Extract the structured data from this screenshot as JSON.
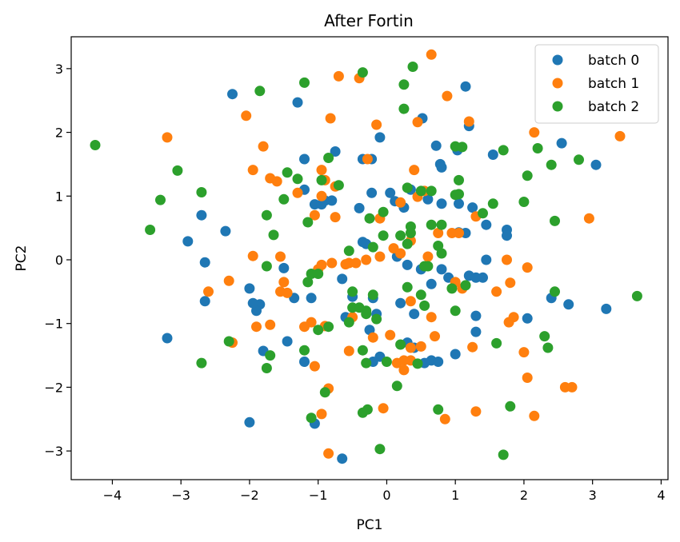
{
  "chart_data": {
    "type": "scatter",
    "title": "After Fortin",
    "xlabel": "PC1",
    "ylabel": "PC2",
    "xlim": [
      -4.6,
      4.1
    ],
    "ylim": [
      -3.45,
      3.5
    ],
    "xticks": [
      -4,
      -3,
      -2,
      -1,
      0,
      1,
      2,
      3,
      4
    ],
    "yticks": [
      -3,
      -2,
      -1,
      0,
      1,
      2,
      3
    ],
    "grid": false,
    "legend_position": "top-right",
    "series": [
      {
        "name": "batch 0",
        "color": "#1f77b4",
        "points": [
          [
            -2.25,
            2.6
          ],
          [
            -1.3,
            2.47
          ],
          [
            1.15,
            2.72
          ],
          [
            0.52,
            2.22
          ],
          [
            1.2,
            2.1
          ],
          [
            -1.2,
            1.58
          ],
          [
            -0.75,
            1.7
          ],
          [
            -0.35,
            1.58
          ],
          [
            -0.22,
            1.58
          ],
          [
            -0.1,
            1.92
          ],
          [
            0.72,
            1.79
          ],
          [
            1.03,
            1.72
          ],
          [
            1.55,
            1.65
          ],
          [
            2.55,
            1.83
          ],
          [
            3.05,
            1.49
          ],
          [
            0.78,
            1.5
          ],
          [
            0.8,
            1.45
          ],
          [
            -1.2,
            1.1
          ],
          [
            -1.05,
            0.87
          ],
          [
            -0.95,
            0.87
          ],
          [
            -0.9,
            0.93
          ],
          [
            -0.8,
            0.93
          ],
          [
            -0.4,
            0.81
          ],
          [
            -0.22,
            1.05
          ],
          [
            0.05,
            1.05
          ],
          [
            0.35,
            1.1
          ],
          [
            0.12,
            0.92
          ],
          [
            0.25,
            0.82
          ],
          [
            0.6,
            0.95
          ],
          [
            0.8,
            0.88
          ],
          [
            1.05,
            0.88
          ],
          [
            1.25,
            0.82
          ],
          [
            -2.7,
            0.7
          ],
          [
            -2.35,
            0.45
          ],
          [
            -2.9,
            0.29
          ],
          [
            -2.65,
            -0.04
          ],
          [
            -0.35,
            0.28
          ],
          [
            -0.3,
            0.25
          ],
          [
            0.15,
            0.05
          ],
          [
            0.3,
            -0.08
          ],
          [
            0.5,
            -0.15
          ],
          [
            0.8,
            -0.15
          ],
          [
            1.05,
            0.43
          ],
          [
            1.15,
            0.42
          ],
          [
            1.45,
            0.55
          ],
          [
            1.75,
            0.47
          ],
          [
            1.75,
            0.38
          ],
          [
            1.45,
            0.0
          ],
          [
            -2.0,
            -0.45
          ],
          [
            -1.85,
            -0.7
          ],
          [
            -1.9,
            -0.8
          ],
          [
            -1.5,
            -0.13
          ],
          [
            -1.35,
            -0.6
          ],
          [
            -1.1,
            -0.6
          ],
          [
            -0.65,
            -0.3
          ],
          [
            -0.5,
            -0.58
          ],
          [
            -0.6,
            -0.9
          ],
          [
            -0.2,
            -0.6
          ],
          [
            -0.15,
            -0.85
          ],
          [
            -0.25,
            -1.1
          ],
          [
            0.2,
            -0.68
          ],
          [
            0.4,
            -0.85
          ],
          [
            0.65,
            -0.38
          ],
          [
            0.9,
            -0.28
          ],
          [
            1.2,
            -0.25
          ],
          [
            1.3,
            -0.28
          ],
          [
            1.4,
            -0.28
          ],
          [
            1.3,
            -0.88
          ],
          [
            1.3,
            -1.13
          ],
          [
            2.05,
            -0.92
          ],
          [
            2.4,
            -0.6
          ],
          [
            2.65,
            -0.7
          ],
          [
            3.2,
            -0.77
          ],
          [
            -1.95,
            -0.68
          ],
          [
            -1.8,
            -1.43
          ],
          [
            -1.45,
            -1.28
          ],
          [
            -1.2,
            -1.6
          ],
          [
            -1.05,
            -2.57
          ],
          [
            -0.65,
            -3.12
          ],
          [
            -0.1,
            -1.52
          ],
          [
            0.3,
            -1.3
          ],
          [
            0.4,
            -1.38
          ],
          [
            0.55,
            -1.62
          ],
          [
            0.65,
            -1.58
          ],
          [
            0.75,
            -1.6
          ],
          [
            1.0,
            -1.48
          ],
          [
            -2.0,
            -2.55
          ],
          [
            -3.2,
            -1.23
          ],
          [
            -2.65,
            -0.65
          ],
          [
            -0.2,
            -1.6
          ]
        ]
      },
      {
        "name": "batch 1",
        "color": "#ff7f0e",
        "points": [
          [
            0.65,
            3.22
          ],
          [
            -0.7,
            2.88
          ],
          [
            -0.4,
            2.85
          ],
          [
            0.88,
            2.57
          ],
          [
            -2.05,
            2.26
          ],
          [
            -0.82,
            2.22
          ],
          [
            -0.15,
            2.12
          ],
          [
            0.45,
            2.16
          ],
          [
            1.2,
            2.17
          ],
          [
            2.15,
            2.0
          ],
          [
            3.4,
            1.94
          ],
          [
            -3.2,
            1.92
          ],
          [
            -1.8,
            1.78
          ],
          [
            -0.28,
            1.58
          ],
          [
            0.4,
            1.41
          ],
          [
            -1.95,
            1.41
          ],
          [
            -1.7,
            1.28
          ],
          [
            -1.6,
            1.23
          ],
          [
            -1.3,
            1.05
          ],
          [
            -0.95,
            1.41
          ],
          [
            -0.9,
            1.25
          ],
          [
            -0.75,
            1.15
          ],
          [
            -0.95,
            1.0
          ],
          [
            0.45,
            0.99
          ],
          [
            0.55,
            1.08
          ],
          [
            -1.05,
            0.7
          ],
          [
            -0.75,
            0.67
          ],
          [
            -0.1,
            0.65
          ],
          [
            0.2,
            0.9
          ],
          [
            1.3,
            0.68
          ],
          [
            2.95,
            0.65
          ],
          [
            0.75,
            0.42
          ],
          [
            0.95,
            0.42
          ],
          [
            1.05,
            0.42
          ],
          [
            -1.95,
            0.06
          ],
          [
            -1.55,
            0.05
          ],
          [
            -1.0,
            -0.15
          ],
          [
            -0.95,
            -0.08
          ],
          [
            -0.8,
            -0.05
          ],
          [
            -0.6,
            -0.07
          ],
          [
            -0.55,
            -0.05
          ],
          [
            -0.45,
            -0.05
          ],
          [
            -0.3,
            0.0
          ],
          [
            -0.1,
            0.05
          ],
          [
            0.1,
            0.18
          ],
          [
            0.2,
            0.1
          ],
          [
            0.35,
            0.3
          ],
          [
            0.6,
            0.05
          ],
          [
            1.75,
            0.0
          ],
          [
            2.05,
            -0.12
          ],
          [
            -2.6,
            -0.5
          ],
          [
            -2.3,
            -0.33
          ],
          [
            -1.55,
            -0.5
          ],
          [
            -1.5,
            -0.35
          ],
          [
            -1.45,
            -0.52
          ],
          [
            0.35,
            -0.65
          ],
          [
            0.65,
            -0.9
          ],
          [
            1.0,
            -0.35
          ],
          [
            1.1,
            -0.45
          ],
          [
            1.6,
            -0.5
          ],
          [
            1.8,
            -0.36
          ],
          [
            1.85,
            -0.9
          ],
          [
            1.78,
            -0.98
          ],
          [
            -1.9,
            -1.05
          ],
          [
            -1.7,
            -1.02
          ],
          [
            -1.2,
            -1.05
          ],
          [
            -0.9,
            -1.04
          ],
          [
            -0.55,
            -1.43
          ],
          [
            -0.5,
            -0.9
          ],
          [
            -0.2,
            -1.22
          ],
          [
            0.05,
            -1.18
          ],
          [
            0.15,
            -1.62
          ],
          [
            0.25,
            -1.58
          ],
          [
            0.25,
            -1.73
          ],
          [
            0.35,
            -1.38
          ],
          [
            0.5,
            -1.36
          ],
          [
            0.7,
            -1.2
          ],
          [
            1.25,
            -1.37
          ],
          [
            2.0,
            -1.45
          ],
          [
            2.05,
            -1.85
          ],
          [
            -2.25,
            -1.3
          ],
          [
            -1.05,
            -1.67
          ],
          [
            -0.85,
            -2.02
          ],
          [
            -0.05,
            -2.33
          ],
          [
            0.35,
            -1.58
          ],
          [
            0.85,
            -2.5
          ],
          [
            1.3,
            -2.38
          ],
          [
            2.15,
            -2.45
          ],
          [
            2.6,
            -2.0
          ],
          [
            2.7,
            -2.0
          ],
          [
            -0.85,
            -3.04
          ],
          [
            -1.1,
            -0.98
          ],
          [
            -0.95,
            -2.42
          ]
        ]
      },
      {
        "name": "batch 2",
        "color": "#2ca02c",
        "points": [
          [
            0.38,
            3.03
          ],
          [
            -0.35,
            2.94
          ],
          [
            -1.2,
            2.78
          ],
          [
            -1.85,
            2.65
          ],
          [
            0.25,
            2.75
          ],
          [
            0.25,
            2.37
          ],
          [
            1.0,
            1.78
          ],
          [
            1.1,
            1.77
          ],
          [
            1.7,
            1.72
          ],
          [
            2.2,
            1.75
          ],
          [
            2.8,
            1.57
          ],
          [
            2.4,
            1.49
          ],
          [
            -4.25,
            1.8
          ],
          [
            -3.05,
            1.4
          ],
          [
            -1.45,
            1.37
          ],
          [
            -1.3,
            1.27
          ],
          [
            -0.95,
            1.25
          ],
          [
            -0.85,
            1.6
          ],
          [
            -0.7,
            1.17
          ],
          [
            2.05,
            1.32
          ],
          [
            1.05,
            1.25
          ],
          [
            1.05,
            1.03
          ],
          [
            1.0,
            1.02
          ],
          [
            0.3,
            1.13
          ],
          [
            0.5,
            1.08
          ],
          [
            0.65,
            1.08
          ],
          [
            -3.3,
            0.94
          ],
          [
            -2.7,
            1.06
          ],
          [
            -1.75,
            0.7
          ],
          [
            -1.5,
            0.95
          ],
          [
            -1.15,
            0.59
          ],
          [
            -0.25,
            0.65
          ],
          [
            -0.05,
            0.75
          ],
          [
            0.35,
            0.52
          ],
          [
            0.35,
            0.42
          ],
          [
            0.2,
            0.38
          ],
          [
            0.65,
            0.55
          ],
          [
            0.8,
            0.55
          ],
          [
            1.4,
            0.73
          ],
          [
            1.55,
            0.88
          ],
          [
            2.0,
            0.91
          ],
          [
            2.45,
            0.61
          ],
          [
            -3.45,
            0.47
          ],
          [
            -1.65,
            0.39
          ],
          [
            -0.55,
            0.14
          ],
          [
            -0.2,
            0.2
          ],
          [
            -0.05,
            0.38
          ],
          [
            0.3,
            0.25
          ],
          [
            0.75,
            0.22
          ],
          [
            0.55,
            -0.1
          ],
          [
            0.6,
            -0.1
          ],
          [
            0.8,
            0.1
          ],
          [
            -1.75,
            -0.1
          ],
          [
            -1.1,
            -0.22
          ],
          [
            -1.0,
            -0.22
          ],
          [
            -1.15,
            -0.35
          ],
          [
            -0.5,
            -0.75
          ],
          [
            -0.4,
            -0.75
          ],
          [
            -0.3,
            -0.8
          ],
          [
            -0.2,
            -0.55
          ],
          [
            -0.3,
            -0.85
          ],
          [
            0.3,
            -0.43
          ],
          [
            0.5,
            -0.55
          ],
          [
            0.55,
            -0.72
          ],
          [
            0.95,
            -0.45
          ],
          [
            1.15,
            -0.4
          ],
          [
            1.0,
            -0.8
          ],
          [
            2.45,
            -0.5
          ],
          [
            3.65,
            -0.57
          ],
          [
            -1.0,
            -1.1
          ],
          [
            -0.85,
            -1.05
          ],
          [
            -0.55,
            -0.98
          ],
          [
            -0.5,
            -0.5
          ],
          [
            -0.15,
            -0.93
          ],
          [
            -0.35,
            -1.42
          ],
          [
            -0.3,
            -1.62
          ],
          [
            0.0,
            -1.6
          ],
          [
            0.2,
            -1.33
          ],
          [
            0.45,
            -1.63
          ],
          [
            -2.3,
            -1.28
          ],
          [
            -1.7,
            -1.5
          ],
          [
            -1.75,
            -1.7
          ],
          [
            -1.2,
            -1.42
          ],
          [
            -0.9,
            -2.08
          ],
          [
            -2.7,
            -1.62
          ],
          [
            1.6,
            -1.31
          ],
          [
            2.3,
            -1.2
          ],
          [
            2.35,
            -1.38
          ],
          [
            -1.1,
            -2.48
          ],
          [
            -0.35,
            -2.4
          ],
          [
            -0.28,
            -2.35
          ],
          [
            0.15,
            -1.98
          ],
          [
            0.75,
            -2.35
          ],
          [
            1.8,
            -2.3
          ],
          [
            -0.1,
            -2.97
          ],
          [
            1.7,
            -3.06
          ]
        ]
      }
    ]
  }
}
